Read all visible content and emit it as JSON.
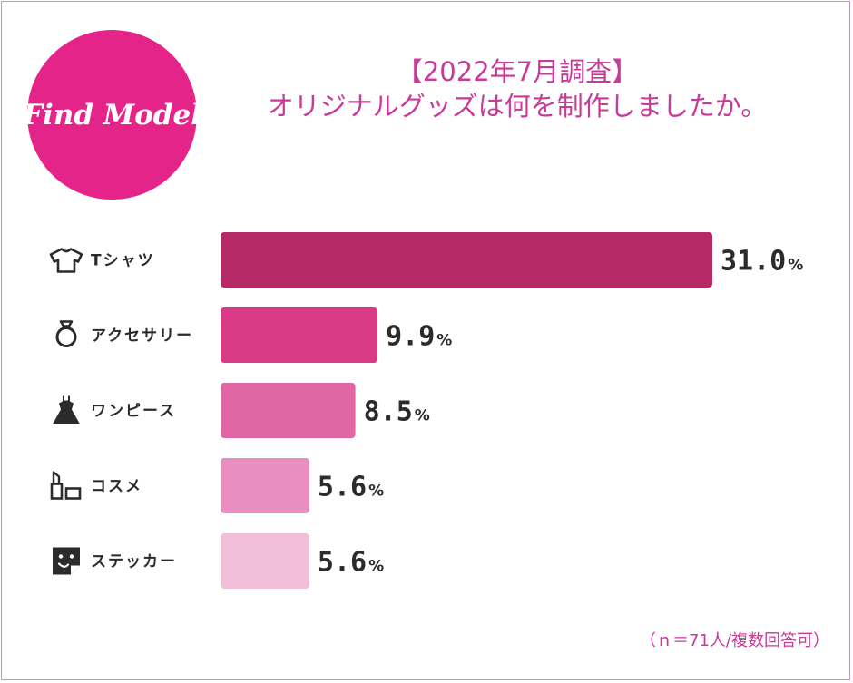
{
  "logo": {
    "text": "Find Model"
  },
  "header": {
    "survey": "【2022年7月調査】",
    "question": "オリジナルグッズは何を制作しましたか。"
  },
  "footnote": "（ｎ＝71人/複数回答可）",
  "chart_data": {
    "type": "bar",
    "orientation": "horizontal",
    "title": "",
    "xlabel": "",
    "ylabel": "",
    "value_unit": "%",
    "categories": [
      "Tシャツ",
      "アクセサリー",
      "ワンピース",
      "コスメ",
      "ステッカー"
    ],
    "values": [
      31.0,
      9.9,
      8.5,
      5.6,
      5.6
    ],
    "value_labels": [
      "31.0",
      "9.9",
      "8.5",
      "5.6",
      "5.6"
    ],
    "icons": [
      "t-shirt-icon",
      "ring-icon",
      "dress-icon",
      "lipstick-icon",
      "sticker-icon"
    ],
    "colors": [
      "#b52a66",
      "#d83a86",
      "#e066a4",
      "#e88fbf",
      "#f2bfdb"
    ],
    "grid": false,
    "legend": "none"
  }
}
